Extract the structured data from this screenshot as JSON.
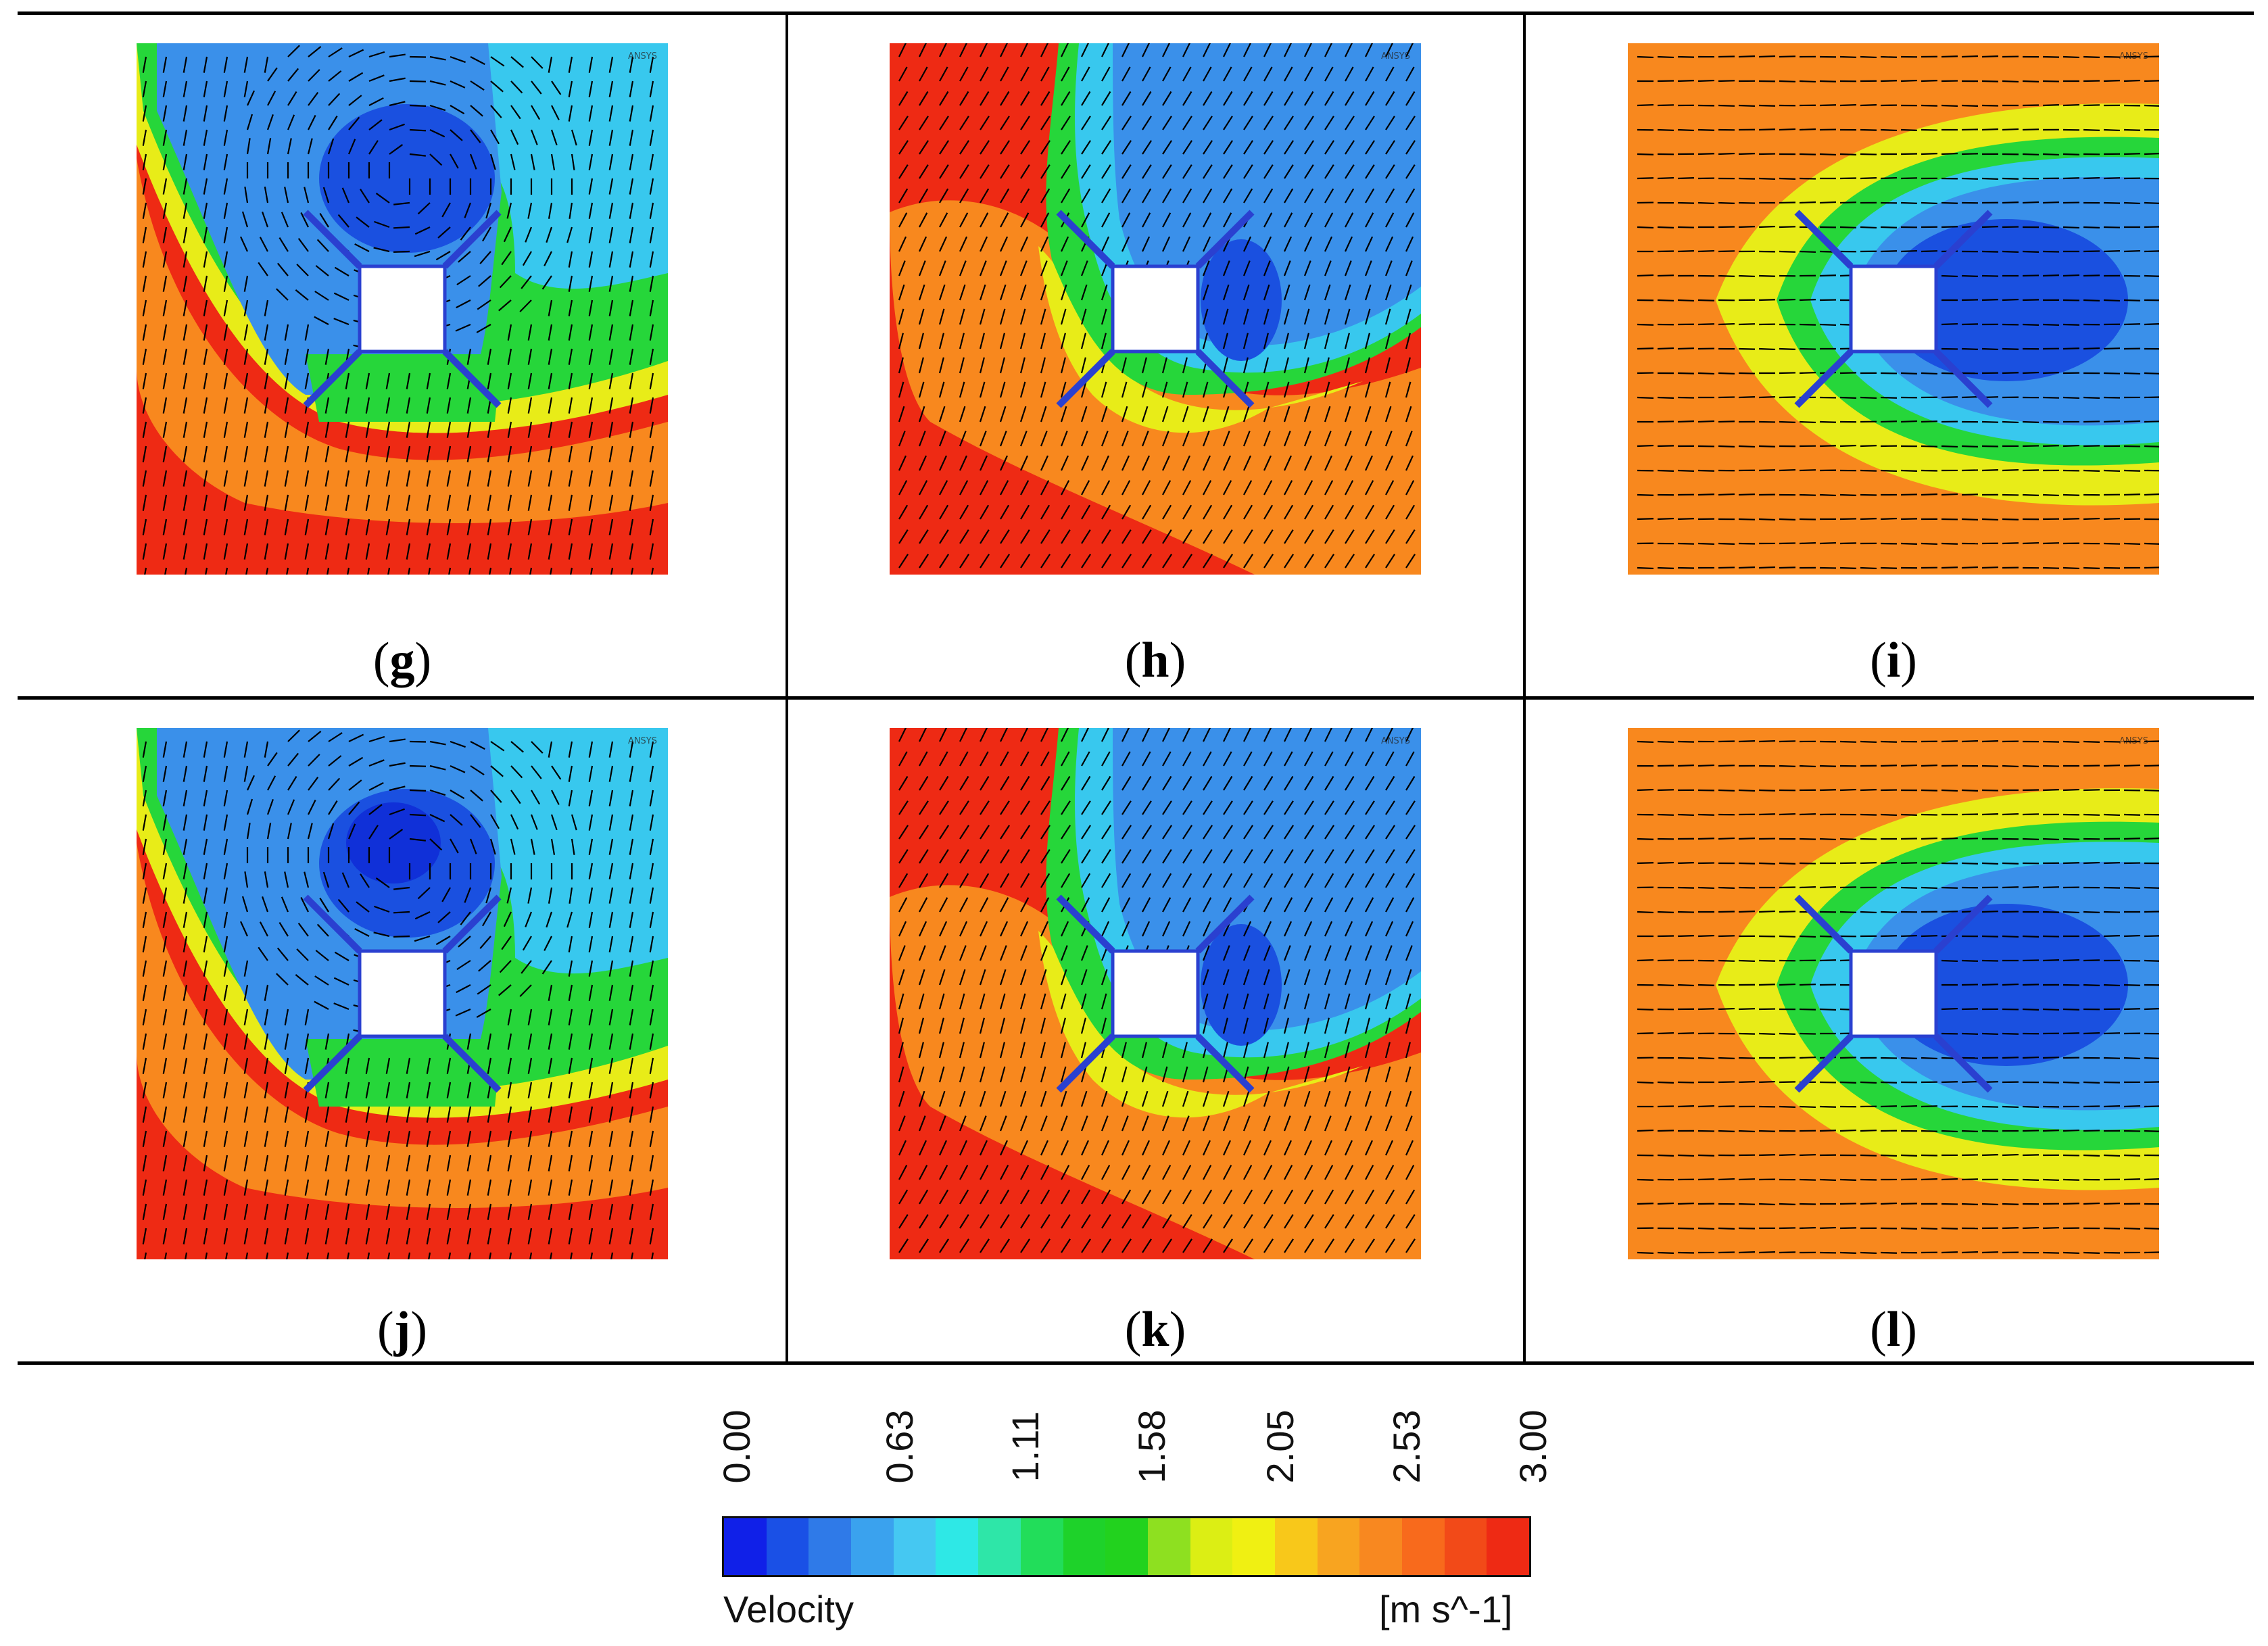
{
  "panels": [
    {
      "id": "g",
      "pattern": "vortex-left",
      "label_open": "(",
      "label_letter": "g",
      "label_close": ")",
      "watermark": "ANSYS"
    },
    {
      "id": "h",
      "pattern": "diagonal",
      "label_open": "(",
      "label_letter": "h",
      "label_close": ")",
      "watermark": "ANSYS"
    },
    {
      "id": "i",
      "pattern": "wake",
      "label_open": "(",
      "label_letter": "i",
      "label_close": ")",
      "watermark": "ANSYS"
    },
    {
      "id": "j",
      "pattern": "vortex-left",
      "label_open": "(",
      "label_letter": "j",
      "label_close": ")",
      "watermark": "ANSYS"
    },
    {
      "id": "k",
      "pattern": "diagonal",
      "label_open": "(",
      "label_letter": "k",
      "label_close": ")",
      "watermark": "ANSYS"
    },
    {
      "id": "l",
      "pattern": "wake",
      "label_open": "(",
      "label_letter": "l",
      "label_close": ")",
      "watermark": "ANSYS"
    }
  ],
  "legend": {
    "title": "Velocity",
    "unit": "[m s^-1]",
    "ticks": [
      "0.00",
      "0.63",
      "1.11",
      "1.58",
      "2.05",
      "2.53",
      "3.00"
    ],
    "range": [
      0.0,
      3.0
    ],
    "colors": [
      "#1020e8",
      "#1a50e6",
      "#2f7ae8",
      "#3aa2ee",
      "#45c8f2",
      "#2ee8e6",
      "#2ee6a8",
      "#22dd5a",
      "#1ed22a",
      "#22d21e",
      "#8ee020",
      "#dcee14",
      "#f0f012",
      "#f8c81a",
      "#f8a420",
      "#f88820",
      "#f86a1c",
      "#f24a18",
      "#ee2a14"
    ]
  }
}
